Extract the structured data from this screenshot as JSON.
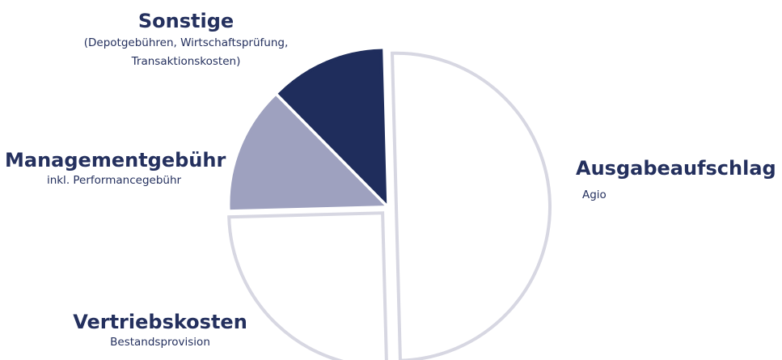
{
  "chart_data": {
    "type": "pie",
    "slices": [
      {
        "label": "Ausgabeaufschlag",
        "sublabel": "Agio",
        "value": 50,
        "fill": "#ffffff",
        "stroke": "#d7d7e2"
      },
      {
        "label": "Vertriebskosten",
        "sublabel": "Bestandsprovision",
        "value": 25,
        "fill": "#ffffff",
        "stroke": "#d7d7e2"
      },
      {
        "label": "Managementgebühr",
        "sublabel": "inkl. Performancegebühr",
        "value": 13,
        "fill": "#9ea1bf",
        "stroke": "#9ea1bf"
      },
      {
        "label": "Sonstige",
        "sublabel_lines": [
          "(Depotgebühren, Wirtschaftsprüfung,",
          "Transaktionskosten)"
        ],
        "value": 12,
        "fill": "#1f2d5c",
        "stroke": "#1f2d5c"
      }
    ],
    "colors": {
      "text": "#24305e",
      "outline": "#d7d7e2",
      "management": "#9ea1bf",
      "sonstige": "#1f2d5c"
    }
  }
}
